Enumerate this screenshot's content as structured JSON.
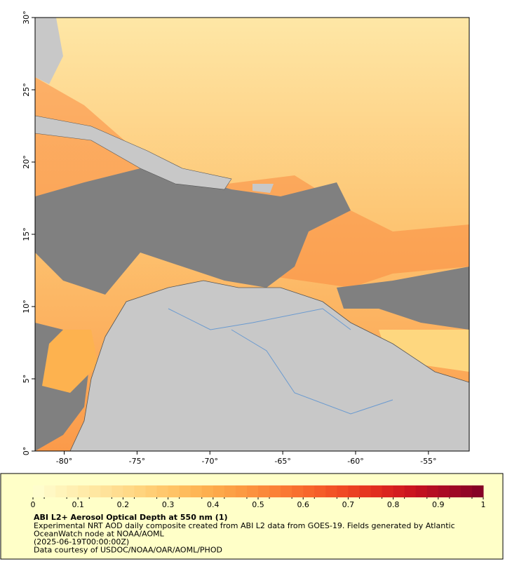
{
  "map": {
    "lonlim": [
      -82,
      -52.2
    ],
    "latlim": [
      0,
      30
    ],
    "lonticks": [
      {
        "value": -80,
        "label": "-80°"
      },
      {
        "value": -75,
        "label": "-75°"
      },
      {
        "value": -70,
        "label": "-70°"
      },
      {
        "value": -65,
        "label": "-65°"
      },
      {
        "value": -60,
        "label": "-60°"
      },
      {
        "value": -55,
        "label": "-55°"
      }
    ],
    "latticks": [
      {
        "value": 0,
        "label": "0°"
      },
      {
        "value": 5,
        "label": "5°"
      },
      {
        "value": 10,
        "label": "10°"
      },
      {
        "value": 15,
        "label": "15°"
      },
      {
        "value": 20,
        "label": "20°"
      },
      {
        "value": 25,
        "label": "25°"
      },
      {
        "value": 30,
        "label": "30°"
      }
    ]
  },
  "colorbar": {
    "lim": [
      0,
      1
    ],
    "ticks": [
      0,
      0.1,
      0.2,
      0.3,
      0.4,
      0.5,
      0.6,
      0.7,
      0.8,
      0.9,
      1
    ],
    "colors": [
      "#ffffd2",
      "#fff1b5",
      "#ffe49c",
      "#ffd580",
      "#ffc466",
      "#fdb04f",
      "#fc9a42",
      "#fb8136",
      "#f7652b",
      "#ef4823",
      "#e02a1f",
      "#c8121f",
      "#a50a26",
      "#800026"
    ]
  },
  "caption": {
    "title": "ABI L2+ Aerosol Optical Depth at 550 nm (1)",
    "lines": [
      "Experimental NRT AOD daily composite created from ABI L2 data from GOES-19. Fields generated by Atlantic",
      "OceanWatch node at NOAA/AOML",
      "(2025-06-19T00:00:00Z)",
      "Data courtesy of USDOC/NOAA/OAR/AOML/PHOD"
    ]
  }
}
